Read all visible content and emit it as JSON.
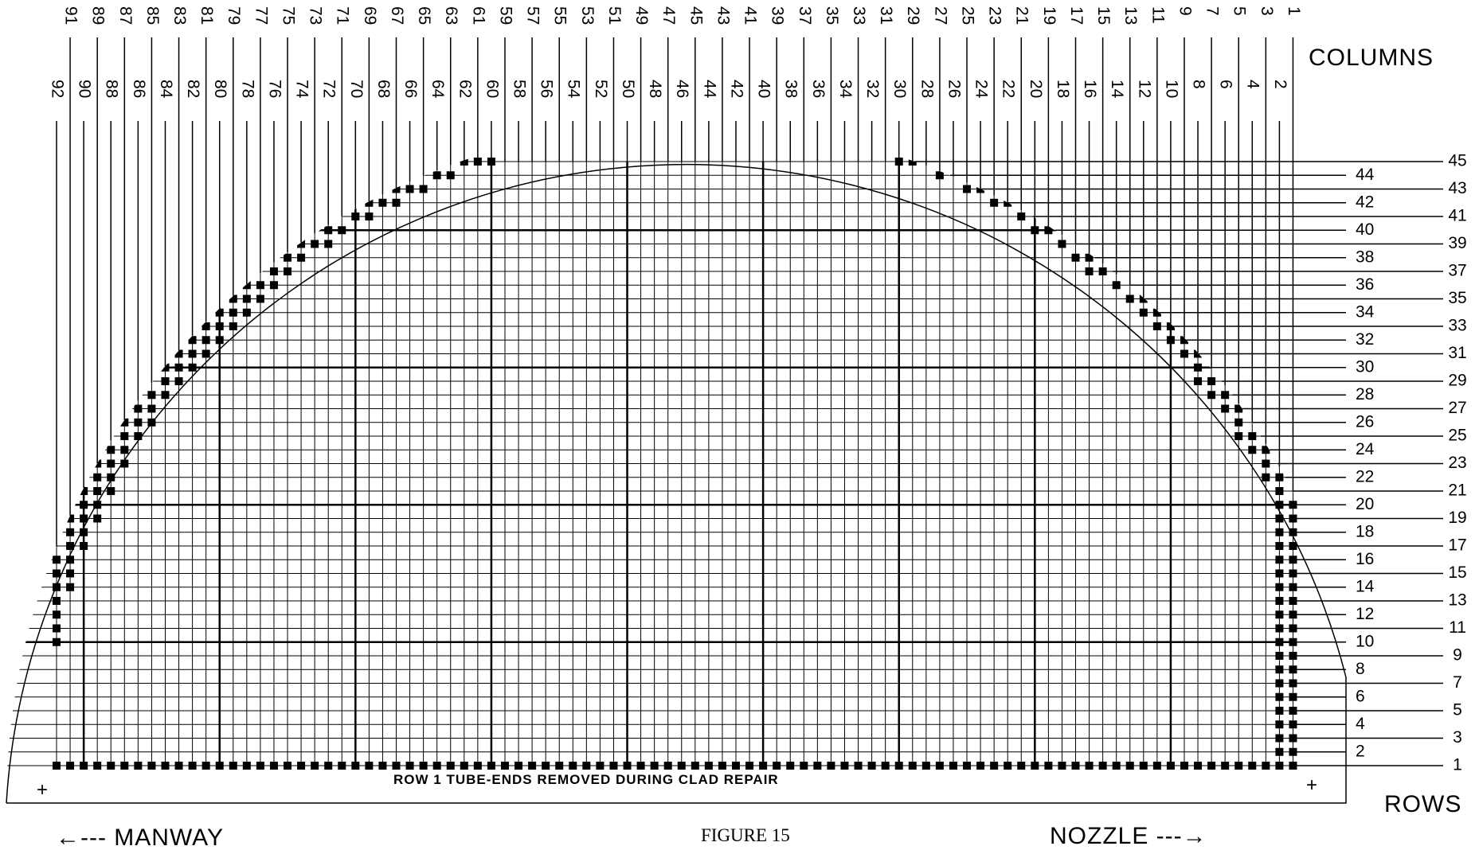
{
  "columns_odd": [
    91,
    89,
    87,
    85,
    83,
    81,
    79,
    77,
    75,
    73,
    71,
    69,
    67,
    65,
    63,
    61,
    59,
    57,
    55,
    53,
    51,
    49,
    47,
    45,
    43,
    41,
    39,
    37,
    35,
    33,
    31,
    29,
    27,
    25,
    23,
    21,
    19,
    17,
    15,
    13,
    11,
    9,
    7,
    5,
    3,
    1
  ],
  "columns_even": [
    92,
    90,
    88,
    86,
    84,
    82,
    80,
    78,
    76,
    74,
    72,
    70,
    68,
    66,
    64,
    62,
    60,
    58,
    56,
    54,
    52,
    50,
    48,
    46,
    44,
    42,
    40,
    38,
    36,
    34,
    32,
    30,
    28,
    26,
    24,
    22,
    20,
    18,
    16,
    14,
    12,
    10,
    8,
    6,
    4,
    2
  ],
  "columns_label": "COLUMNS",
  "rows_odd": [
    45,
    43,
    41,
    39,
    37,
    35,
    33,
    31,
    29,
    27,
    25,
    23,
    21,
    19,
    17,
    15,
    13,
    11,
    9,
    7,
    5,
    3,
    1
  ],
  "rows_even": [
    44,
    42,
    40,
    38,
    36,
    34,
    32,
    30,
    28,
    26,
    24,
    22,
    20,
    18,
    16,
    14,
    12,
    10,
    8,
    6,
    4,
    2
  ],
  "rows_label": "ROWS",
  "note": "ROW 1   TUBE-ENDS REMOVED DURING CLAD REPAIR",
  "figure": "FIGURE 15",
  "left_arrow": "←--- MANWAY",
  "right_arrow": "NOZZLE ---→",
  "corner_marks": [
    "+",
    "+"
  ]
}
